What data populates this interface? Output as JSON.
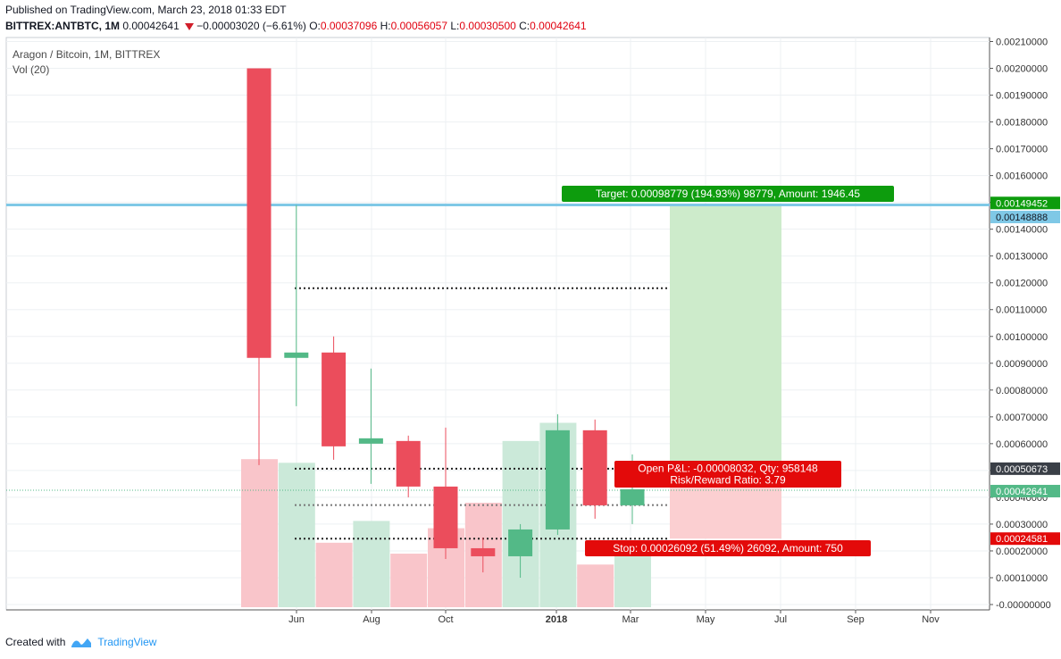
{
  "header": {
    "published": "Published on TradingView.com, March 23, 2018 01:33 EDT",
    "symbol": "BITTREX:ANTBTC, 1M",
    "last": "0.00042641",
    "change": "−0.00003020 (−6.61%)",
    "o_label": "O:",
    "o_value": "0.00037096",
    "h_label": "H:",
    "h_value": "0.00056057",
    "l_label": "L:",
    "l_value": "0.00030500",
    "c_label": "C:",
    "c_value": "0.00042641"
  },
  "legend": {
    "title": "Aragon / Bitcoin, 1M, BITTREX",
    "volume": "Vol (20)"
  },
  "footer": {
    "created_with": "Created with",
    "brand": "TradingView"
  },
  "colors": {
    "up": "#53b987",
    "down": "#eb4d5c",
    "vol_up": "#cbe9d9",
    "vol_down": "#f9c5ca",
    "target_zone": "#cdebcb",
    "stop_zone": "#fbcfd1",
    "target_label": "#0d9c0d",
    "stop_label": "#e30a0a",
    "hline": "#7fc8e6"
  },
  "chart_data": {
    "type": "candlestick",
    "x_ticks": [
      "Jun",
      "Aug",
      "Oct",
      "2018",
      "Mar",
      "May",
      "Jul",
      "Sep",
      "Nov"
    ],
    "y_ticks": [
      "0.00210000",
      "0.00200000",
      "0.00190000",
      "0.00180000",
      "0.00170000",
      "0.00160000",
      "0.00150000",
      "0.00140000",
      "0.00130000",
      "0.00120000",
      "0.00110000",
      "0.00100000",
      "0.00090000",
      "0.00080000",
      "0.00070000",
      "0.00060000",
      "0.00050000",
      "0.00040000",
      "0.00030000",
      "0.00020000",
      "0.00010000",
      "-0.00000000"
    ],
    "ylim": [
      0,
      0.0021
    ],
    "candles": [
      {
        "o": 0.002,
        "h": 0.002,
        "l": 0.00052,
        "c": 0.00092,
        "vol_level": 0.4
      },
      {
        "o": 0.00092,
        "h": 0.00149,
        "l": 0.00074,
        "c": 0.00094,
        "vol_level": 0.39
      },
      {
        "o": 0.00094,
        "h": 0.001,
        "l": 0.00054,
        "c": 0.00059,
        "vol_level": 0.17
      },
      {
        "o": 0.0006,
        "h": 0.00088,
        "l": 0.00045,
        "c": 0.00062,
        "vol_level": 0.23
      },
      {
        "o": 0.00061,
        "h": 0.00063,
        "l": 0.0004,
        "c": 0.00044,
        "vol_level": 0.14
      },
      {
        "o": 0.00044,
        "h": 0.00066,
        "l": 0.00017,
        "c": 0.00021,
        "vol_level": 0.21
      },
      {
        "o": 0.00021,
        "h": 0.00025,
        "l": 0.00012,
        "c": 0.00018,
        "vol_level": 0.28
      },
      {
        "o": 0.00018,
        "h": 0.0003,
        "l": 0.0001,
        "c": 0.00028,
        "vol_level": 0.45
      },
      {
        "o": 0.00028,
        "h": 0.00071,
        "l": 0.00026,
        "c": 0.00065,
        "vol_level": 0.5
      },
      {
        "o": 0.00065,
        "h": 0.00069,
        "l": 0.00032,
        "c": 0.00037,
        "vol_level": 0.11
      },
      {
        "o": 0.00037,
        "h": 0.00056,
        "l": 0.0003,
        "c": 0.00043,
        "vol_level": 0.17
      }
    ],
    "levels": {
      "entry": 0.00050673,
      "target": 0.00149452,
      "stop": 0.00024581,
      "horizontal_line": 0.00148888,
      "last_price": 0.00042641,
      "dotted": [
        0.00118,
        0.00050673,
        0.00037096,
        0.00024581
      ]
    },
    "price_labels": {
      "target": "0.00149452",
      "hline": "0.00148888",
      "entry": "0.00050673",
      "last": "0.00042641",
      "stop": "0.00024581"
    },
    "position": {
      "target_text": "Target: 0.00098779 (194.93%) 98779, Amount: 1946.45",
      "pnl_text": "Open P&L: -0.00008032, Qty: 958148",
      "rr_text": "Risk/Reward Ratio: 3.79",
      "stop_text": "Stop: 0.00026092 (51.49%) 26092, Amount: 750"
    }
  }
}
